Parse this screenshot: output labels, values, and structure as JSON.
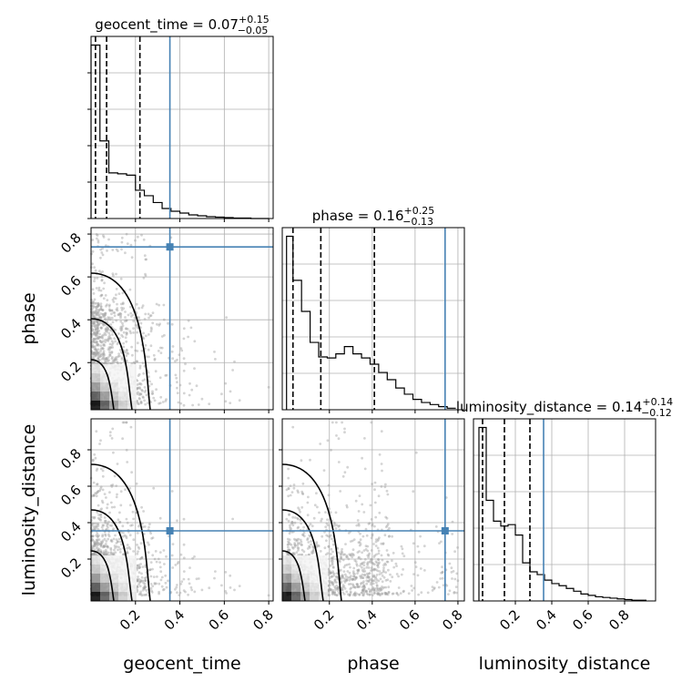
{
  "chart_data": {
    "type": "corner",
    "parameters": [
      "geocent_time",
      "phase",
      "luminosity_distance"
    ],
    "axis_labels": [
      "geocent_time",
      "phase",
      "luminosity_distance"
    ],
    "ranges": [
      [
        0.0,
        0.82
      ],
      [
        -0.02,
        0.83
      ],
      [
        -0.03,
        0.97
      ]
    ],
    "truths": [
      0.355,
      0.74,
      0.355
    ],
    "truth_color": "#4682b4",
    "titles": [
      {
        "text": "geocent_time = 0.07",
        "plus": "+0.15",
        "minus": "−0.05"
      },
      {
        "text": "phase = 0.16",
        "plus": "+0.25",
        "minus": "−0.13"
      },
      {
        "text": "luminosity_distance = 0.14",
        "plus": "+0.14",
        "minus": "−0.12"
      }
    ],
    "quantiles": [
      [
        0.02,
        0.07,
        0.22
      ],
      [
        0.03,
        0.16,
        0.41
      ],
      [
        0.02,
        0.14,
        0.28
      ]
    ],
    "ticks": {
      "geocent_time": [
        "0.2",
        "0.4",
        "0.6",
        "0.8"
      ],
      "phase": [
        "0.2",
        "0.4",
        "0.6",
        "0.8"
      ],
      "luminosity_distance": [
        "0.2",
        "0.4",
        "0.6",
        "0.8"
      ]
    },
    "histograms": [
      {
        "edges": [
          0.0,
          0.04,
          0.08,
          0.12,
          0.16,
          0.2,
          0.24,
          0.28,
          0.32,
          0.36,
          0.4,
          0.44,
          0.48,
          0.52,
          0.56,
          0.6,
          0.64,
          0.68,
          0.72,
          0.76,
          0.8
        ],
        "counts": [
          380,
          170,
          100,
          98,
          95,
          62,
          50,
          35,
          22,
          16,
          12,
          8,
          6,
          4,
          3,
          2,
          1,
          1,
          0,
          0
        ]
      },
      {
        "edges": [
          0.0,
          0.03,
          0.07,
          0.11,
          0.15,
          0.19,
          0.23,
          0.27,
          0.31,
          0.35,
          0.39,
          0.43,
          0.47,
          0.51,
          0.55,
          0.59,
          0.63,
          0.67,
          0.71,
          0.75,
          0.79
        ],
        "counts": [
          335,
          250,
          190,
          130,
          102,
          100,
          108,
          122,
          108,
          100,
          88,
          72,
          58,
          42,
          30,
          20,
          14,
          10,
          6,
          3
        ]
      },
      {
        "edges": [
          0.0,
          0.04,
          0.08,
          0.12,
          0.16,
          0.2,
          0.24,
          0.28,
          0.32,
          0.36,
          0.4,
          0.44,
          0.48,
          0.52,
          0.56,
          0.6,
          0.64,
          0.68,
          0.72,
          0.76,
          0.8,
          0.84,
          0.88,
          0.92
        ],
        "counts": [
          250,
          145,
          115,
          108,
          110,
          95,
          55,
          42,
          38,
          30,
          25,
          22,
          18,
          14,
          10,
          8,
          6,
          5,
          4,
          3,
          2,
          1,
          1
        ]
      }
    ],
    "legend": "none",
    "grid": true
  },
  "colors": {
    "truth": "#4682b4",
    "points": "#a0a0a0",
    "contour": "#000000"
  }
}
